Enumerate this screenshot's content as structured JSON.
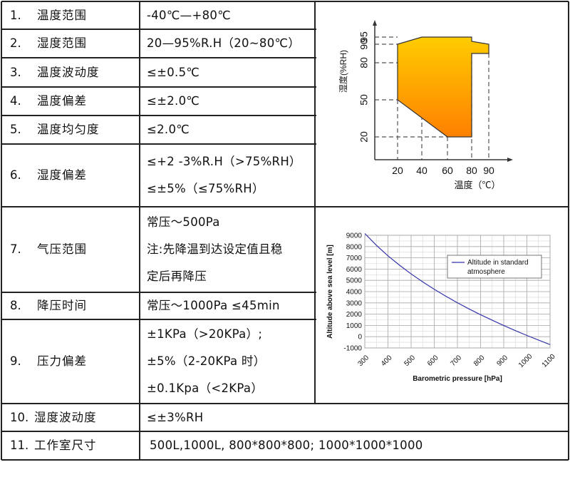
{
  "rows": [
    {
      "num": "1.",
      "label": "温度范围",
      "values": [
        "-40℃—+80℃"
      ]
    },
    {
      "num": "2.",
      "label": "湿度范围",
      "values": [
        "20—95%R.H（20~80℃）"
      ]
    },
    {
      "num": "3.",
      "label": "温度波动度",
      "values": [
        "≤±0.5℃"
      ]
    },
    {
      "num": "4.",
      "label": "温度偏差",
      "values": [
        "≤±2.0℃"
      ]
    },
    {
      "num": "5.",
      "label": "温度均匀度",
      "values": [
        "≤2.0℃"
      ]
    },
    {
      "num": "6.",
      "label": "湿度偏差",
      "values": [
        "≤+2 -3%R.H（>75%RH）",
        "≤±5%（≤75%RH）"
      ]
    },
    {
      "num": "7.",
      "label": "气压范围",
      "values": [
        "常压～500Pa",
        "注:先降温到达设定值且稳",
        "定后再降压"
      ]
    },
    {
      "num": "8.",
      "label": "降压时间",
      "values": [
        "常压～1000Pa ≤45min"
      ]
    },
    {
      "num": "9.",
      "label": "压力偏差",
      "values": [
        "±1KPa（>20KPa）;",
        "±5%（2-20KPa 时）",
        "±0.1Kpa（<2KPa）"
      ]
    },
    {
      "num": "10.",
      "label": "湿度波动度",
      "values": [
        "≤±3%RH"
      ]
    },
    {
      "num": "11.",
      "label": "工作室尺寸",
      "values": [
        "500L,1000L, 800*800*800; 1000*1000*1000"
      ]
    }
  ],
  "chart_data": [
    {
      "type": "area",
      "xlabel": "温度（℃）",
      "ylabel": "湿度(%RH)",
      "x_ticks": [
        20,
        40,
        60,
        80,
        90
      ],
      "y_ticks": [
        20,
        50,
        80,
        90,
        95
      ],
      "region": [
        [
          20,
          50
        ],
        [
          20,
          90
        ],
        [
          40,
          95
        ],
        [
          80,
          95
        ],
        [
          80,
          92
        ],
        [
          90,
          90
        ],
        [
          90,
          85
        ],
        [
          80,
          85
        ],
        [
          80,
          20
        ],
        [
          60,
          20
        ],
        [
          20,
          50
        ]
      ],
      "colors": {
        "fill_top": "#ffcc00",
        "fill_bottom": "#ff8000",
        "outline": "#333333",
        "dash": "#555555"
      }
    },
    {
      "type": "line",
      "xlabel": "Barometric pressure [hPa]",
      "ylabel": "Altitude above sea level [m]",
      "x_ticks": [
        300,
        400,
        500,
        600,
        700,
        800,
        900,
        1000,
        1100
      ],
      "y_ticks": [
        -1000,
        0,
        1000,
        2000,
        3000,
        4000,
        5000,
        6000,
        7000,
        8000,
        9000
      ],
      "xlim": [
        300,
        1100
      ],
      "ylim": [
        -1000,
        9000
      ],
      "legend_position": "top-right",
      "grid": true,
      "series": [
        {
          "name": "Altitude in standard atmosphere",
          "color": "#3333aa",
          "x": [
            300,
            350,
            400,
            450,
            500,
            550,
            600,
            650,
            700,
            750,
            800,
            850,
            900,
            950,
            1000,
            1050,
            1100
          ],
          "y": [
            9160,
            8110,
            7180,
            6340,
            5570,
            4860,
            4200,
            3590,
            3010,
            2460,
            1950,
            1460,
            990,
            540,
            110,
            -300,
            -700
          ]
        }
      ]
    }
  ]
}
